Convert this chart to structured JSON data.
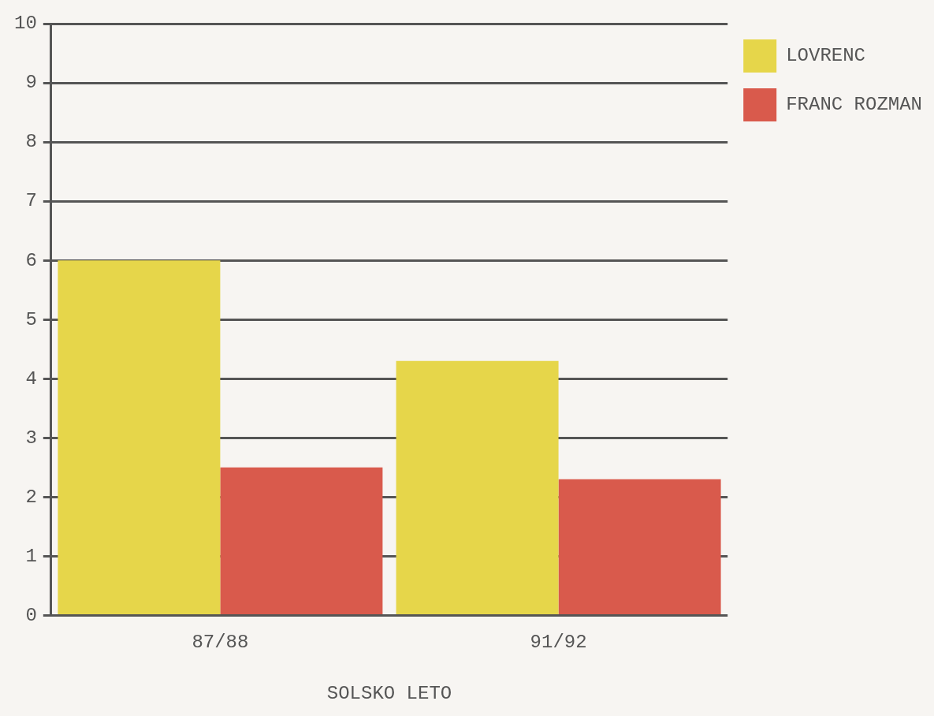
{
  "chart_data": {
    "type": "bar",
    "xlabel": "SOLSKO LETO",
    "categories": [
      "87/88",
      "91/92"
    ],
    "series": [
      {
        "name": "LOVRENC",
        "color": "#e6d64a",
        "values": [
          6.0,
          4.3
        ]
      },
      {
        "name": "FRANC ROZMAN",
        "color": "#d95a4c",
        "values": [
          2.5,
          2.3
        ]
      }
    ],
    "ylim": [
      0,
      10
    ],
    "yticks": [
      0,
      1,
      2,
      3,
      4,
      5,
      6,
      7,
      8,
      9,
      10
    ],
    "grid": "y",
    "legend": "top right"
  }
}
